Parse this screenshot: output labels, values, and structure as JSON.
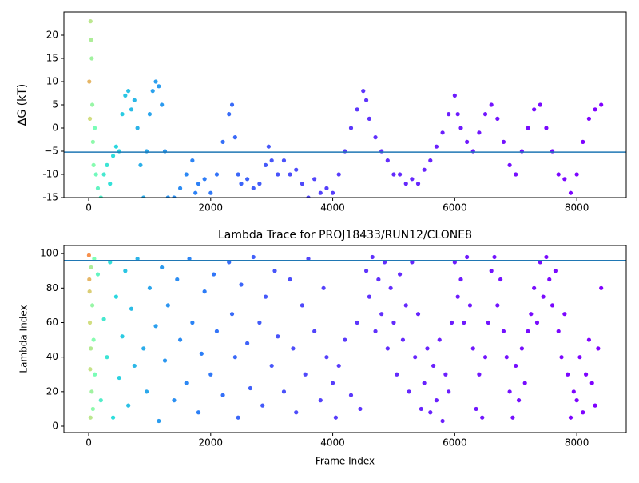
{
  "chart_data": [
    {
      "type": "scatter",
      "ylabel": "ΔG (kT)",
      "x": [
        10,
        20,
        30,
        40,
        50,
        60,
        70,
        80,
        100,
        120,
        150,
        200,
        250,
        300,
        350,
        400,
        450,
        500,
        550,
        600,
        650,
        700,
        750,
        800,
        850,
        900,
        950,
        1000,
        1050,
        1100,
        1150,
        1200,
        1250,
        1300,
        1400,
        1500,
        1600,
        1700,
        1750,
        1800,
        1900,
        2000,
        2100,
        2200,
        2300,
        2350,
        2400,
        2450,
        2500,
        2600,
        2700,
        2800,
        2900,
        2950,
        3000,
        3100,
        3200,
        3300,
        3400,
        3500,
        3600,
        3700,
        3800,
        3900,
        4000,
        4100,
        4200,
        4300,
        4400,
        4500,
        4550,
        4600,
        4700,
        4800,
        4900,
        5000,
        5100,
        5200,
        5300,
        5400,
        5500,
        5600,
        5700,
        5800,
        5900,
        6000,
        6050,
        6100,
        6200,
        6300,
        6400,
        6500,
        6600,
        6700,
        6800,
        6900,
        7000,
        7100,
        7200,
        7300,
        7400,
        7500,
        7600,
        7700,
        7800,
        7900,
        8000,
        8100,
        8200,
        8300,
        8400
      ],
      "y": [
        10,
        2,
        23,
        19,
        15,
        5,
        -3,
        -8,
        0,
        -10,
        -13,
        -15,
        -10,
        -8,
        -12,
        -6,
        -4,
        -5,
        3,
        7,
        8,
        4,
        6,
        0,
        -8,
        -15,
        -5,
        3,
        8,
        10,
        9,
        5,
        -5,
        -15,
        -15,
        -13,
        -10,
        -7,
        -14,
        -12,
        -11,
        -14,
        -10,
        -3,
        3,
        5,
        -2,
        -10,
        -12,
        -11,
        -13,
        -12,
        -8,
        -4,
        -7,
        -10,
        -7,
        -10,
        -9,
        -12,
        -15,
        -11,
        -14,
        -13,
        -14,
        -10,
        -5,
        0,
        4,
        8,
        6,
        2,
        -2,
        -5,
        -7,
        -10,
        -10,
        -12,
        -11,
        -12,
        -9,
        -7,
        -4,
        -1,
        3,
        7,
        3,
        0,
        -3,
        -5,
        -1,
        3,
        5,
        2,
        -3,
        -8,
        -10,
        -5,
        0,
        4,
        5,
        0,
        -5,
        -10,
        -11,
        -14,
        -10,
        -3,
        2,
        4,
        5
      ],
      "hline": -5.2,
      "hline_color": "#1f77b4",
      "xlim": [
        -406,
        8810
      ],
      "ylim": [
        -15,
        25
      ],
      "xticks": [
        0,
        2000,
        4000,
        6000,
        8000
      ],
      "yticks": [
        -15,
        -10,
        {
          "value": -5,
          "label": "−5"
        },
        0,
        5,
        10,
        15,
        20
      ],
      "colormap": [
        "#ff0000",
        "#ff7e41",
        "#d4dd80",
        "#80ffb4",
        "#2adddd",
        "#2c7ef7",
        "#8000ff"
      ],
      "color_norm": "log",
      "color_range": [
        0,
        8400
      ]
    },
    {
      "type": "scatter",
      "title": "Lambda Trace for PROJ18433/RUN12/CLONE8",
      "xlabel": "Frame Index",
      "ylabel": "Lambda Index",
      "x": [
        5,
        10,
        15,
        20,
        25,
        30,
        35,
        40,
        50,
        60,
        70,
        80,
        90,
        100,
        150,
        200,
        250,
        300,
        350,
        400,
        450,
        500,
        550,
        600,
        650,
        700,
        750,
        800,
        900,
        950,
        1000,
        1100,
        1150,
        1200,
        1250,
        1300,
        1400,
        1450,
        1500,
        1600,
        1650,
        1700,
        1800,
        1850,
        1900,
        2000,
        2050,
        2100,
        2200,
        2300,
        2350,
        2400,
        2450,
        2500,
        2600,
        2650,
        2700,
        2800,
        2850,
        2900,
        3000,
        3050,
        3100,
        3200,
        3300,
        3350,
        3400,
        3500,
        3550,
        3600,
        3700,
        3800,
        3850,
        3900,
        4000,
        4050,
        4100,
        4200,
        4300,
        4400,
        4450,
        4550,
        4600,
        4650,
        4700,
        4750,
        4800,
        4850,
        4900,
        4950,
        5000,
        5050,
        5100,
        5150,
        5200,
        5250,
        5300,
        5350,
        5400,
        5450,
        5500,
        5550,
        5600,
        5650,
        5700,
        5750,
        5800,
        5850,
        5900,
        5950,
        6000,
        6050,
        6100,
        6150,
        6200,
        6250,
        6300,
        6350,
        6400,
        6450,
        6500,
        6550,
        6600,
        6650,
        6700,
        6750,
        6800,
        6850,
        6900,
        6950,
        7000,
        7050,
        7100,
        7150,
        7200,
        7250,
        7300,
        7350,
        7400,
        7450,
        7500,
        7550,
        7600,
        7650,
        7700,
        7750,
        7800,
        7850,
        7900,
        7950,
        8000,
        8050,
        8100,
        8150,
        8200,
        8250,
        8300,
        8350,
        8400
      ],
      "y": [
        99,
        85,
        78,
        60,
        33,
        5,
        45,
        92,
        20,
        70,
        10,
        50,
        97,
        30,
        88,
        15,
        62,
        40,
        95,
        5,
        75,
        28,
        52,
        90,
        12,
        68,
        35,
        97,
        45,
        20,
        80,
        58,
        3,
        92,
        38,
        70,
        15,
        85,
        50,
        25,
        97,
        60,
        8,
        42,
        78,
        30,
        88,
        55,
        18,
        95,
        65,
        40,
        5,
        82,
        48,
        22,
        98,
        60,
        12,
        75,
        35,
        90,
        52,
        20,
        85,
        45,
        8,
        70,
        30,
        97,
        55,
        15,
        80,
        40,
        25,
        5,
        35,
        50,
        18,
        60,
        10,
        90,
        75,
        98,
        55,
        85,
        65,
        95,
        45,
        80,
        60,
        30,
        88,
        50,
        70,
        20,
        95,
        40,
        65,
        10,
        25,
        45,
        8,
        35,
        15,
        50,
        3,
        30,
        20,
        60,
        95,
        75,
        85,
        60,
        98,
        70,
        45,
        10,
        30,
        5,
        40,
        60,
        90,
        98,
        70,
        85,
        55,
        40,
        20,
        5,
        35,
        15,
        45,
        25,
        55,
        65,
        80,
        60,
        95,
        75,
        98,
        85,
        70,
        90,
        55,
        40,
        65,
        30,
        5,
        20,
        15,
        40,
        8,
        30,
        50,
        25,
        12,
        45,
        80
      ],
      "hline": 96,
      "hline_color": "#1f77b4",
      "xlim": [
        -406,
        8810
      ],
      "ylim": [
        -3.7,
        104.7
      ],
      "xticks": [
        0,
        2000,
        4000,
        6000,
        8000
      ],
      "yticks": [
        0,
        20,
        40,
        60,
        80,
        100
      ],
      "colormap": [
        "#ff0000",
        "#ff7e41",
        "#d4dd80",
        "#80ffb4",
        "#2adddd",
        "#2c7ef7",
        "#8000ff"
      ],
      "color_norm": "log",
      "color_range": [
        0,
        8400
      ]
    }
  ]
}
